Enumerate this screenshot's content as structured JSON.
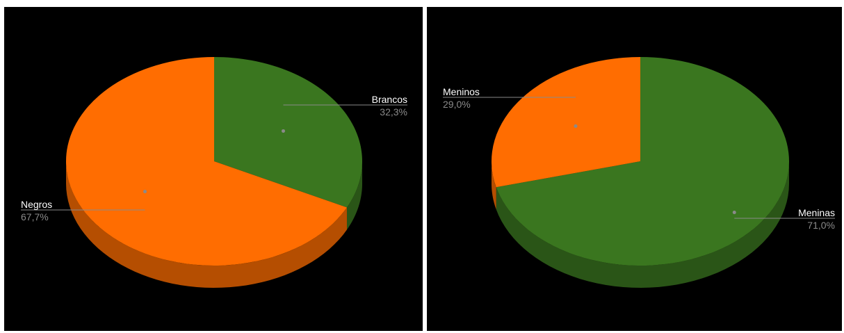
{
  "chart_data": [
    {
      "type": "pie",
      "style": "3d",
      "categories": [
        "Brancos",
        "Negros"
      ],
      "values": [
        32.3,
        67.7
      ],
      "value_labels": [
        "32,3%",
        "67,7%"
      ],
      "colors": [
        "#3a761f",
        "#ff6d01"
      ],
      "side_colors": [
        "#2a5517",
        "#b54e01"
      ],
      "start_angle_deg": 0
    },
    {
      "type": "pie",
      "style": "3d",
      "categories": [
        "Meninas",
        "Meninos"
      ],
      "values": [
        71.0,
        29.0
      ],
      "value_labels": [
        "71,0%",
        "29,0%"
      ],
      "colors": [
        "#3a761f",
        "#ff6d01"
      ],
      "side_colors": [
        "#2a5517",
        "#b54e01"
      ],
      "start_angle_deg": 0
    }
  ]
}
